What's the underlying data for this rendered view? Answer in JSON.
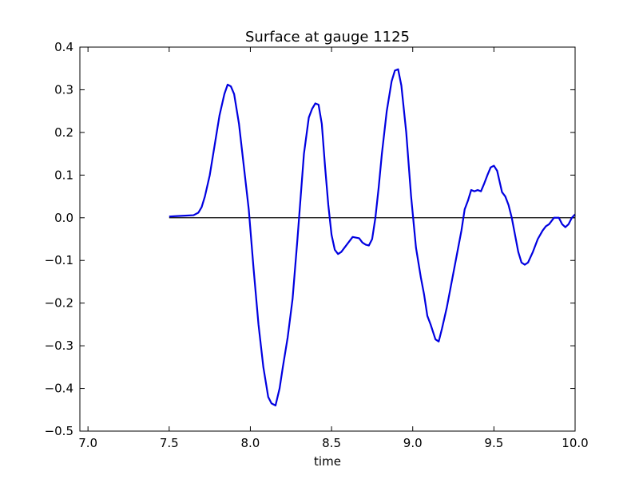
{
  "chart_data": {
    "type": "line",
    "title": "Surface at gauge 1125",
    "x_label": "time",
    "xlim": [
      6.95,
      10.0
    ],
    "xticks": [
      {
        "value": 7,
        "label": "7.0"
      },
      7.5,
      {
        "value": 8,
        "label": "8.0"
      },
      8.5,
      {
        "value": 9,
        "label": "9.0"
      },
      9.5,
      {
        "value": 10,
        "label": "10.0"
      }
    ],
    "ylim": [
      -0.5,
      0.4
    ],
    "yticks": [
      {
        "value": -0.5,
        "label": "−0.5"
      },
      {
        "value": -0.4,
        "label": "−0.4"
      },
      {
        "value": -0.3,
        "label": "−0.3"
      },
      {
        "value": -0.2,
        "label": "−0.2"
      },
      {
        "value": -0.1,
        "label": "−0.1"
      },
      {
        "value": 0,
        "label": "0.0"
      },
      0.1,
      0.2,
      0.3,
      0.4
    ],
    "grid": false,
    "series": [
      {
        "color": "#0000e0",
        "x": [
          7.5,
          7.55,
          7.6,
          7.65,
          7.68,
          7.7,
          7.72,
          7.75,
          7.78,
          7.81,
          7.84,
          7.86,
          7.88,
          7.9,
          7.93,
          7.96,
          7.99,
          8.02,
          8.05,
          8.08,
          8.11,
          8.13,
          8.155,
          8.18,
          8.2,
          8.23,
          8.26,
          8.29,
          8.31,
          8.33,
          8.36,
          8.38,
          8.4,
          8.42,
          8.44,
          8.46,
          8.48,
          8.5,
          8.52,
          8.54,
          8.56,
          8.58,
          8.6,
          8.63,
          8.67,
          8.69,
          8.71,
          8.73,
          8.75,
          8.77,
          8.79,
          8.81,
          8.84,
          8.87,
          8.89,
          8.91,
          8.93,
          8.96,
          8.99,
          9.02,
          9.05,
          9.07,
          9.09,
          9.11,
          9.14,
          9.16,
          9.18,
          9.21,
          9.24,
          9.27,
          9.3,
          9.32,
          9.34,
          9.36,
          9.38,
          9.4,
          9.42,
          9.44,
          9.46,
          9.48,
          9.5,
          9.52,
          9.55,
          9.57,
          9.59,
          9.61,
          9.63,
          9.65,
          9.67,
          9.69,
          9.71,
          9.74,
          9.77,
          9.8,
          9.82,
          9.84,
          9.86,
          9.87,
          9.9,
          9.92,
          9.94,
          9.96,
          9.98,
          10.0
        ],
        "values": [
          0.003,
          0.004,
          0.005,
          0.006,
          0.012,
          0.025,
          0.05,
          0.1,
          0.17,
          0.24,
          0.29,
          0.312,
          0.308,
          0.29,
          0.22,
          0.12,
          0.02,
          -0.12,
          -0.25,
          -0.35,
          -0.42,
          -0.435,
          -0.44,
          -0.4,
          -0.35,
          -0.28,
          -0.19,
          -0.05,
          0.05,
          0.15,
          0.235,
          0.255,
          0.268,
          0.265,
          0.22,
          0.12,
          0.03,
          -0.04,
          -0.075,
          -0.085,
          -0.08,
          -0.07,
          -0.06,
          -0.045,
          -0.048,
          -0.058,
          -0.063,
          -0.065,
          -0.05,
          0.0,
          0.07,
          0.15,
          0.25,
          0.32,
          0.345,
          0.348,
          0.31,
          0.2,
          0.05,
          -0.07,
          -0.14,
          -0.18,
          -0.23,
          -0.25,
          -0.285,
          -0.29,
          -0.26,
          -0.21,
          -0.15,
          -0.09,
          -0.03,
          0.02,
          0.04,
          0.065,
          0.062,
          0.065,
          0.062,
          0.08,
          0.1,
          0.118,
          0.122,
          0.11,
          0.06,
          0.05,
          0.03,
          0.0,
          -0.04,
          -0.08,
          -0.105,
          -0.11,
          -0.105,
          -0.08,
          -0.05,
          -0.03,
          -0.02,
          -0.015,
          -0.005,
          0.0,
          0.0,
          -0.015,
          -0.022,
          -0.015,
          0.0,
          0.008
        ]
      },
      {
        "color": "#000000",
        "x": [
          7.5,
          10.0
        ],
        "values": [
          0,
          0
        ]
      }
    ]
  }
}
